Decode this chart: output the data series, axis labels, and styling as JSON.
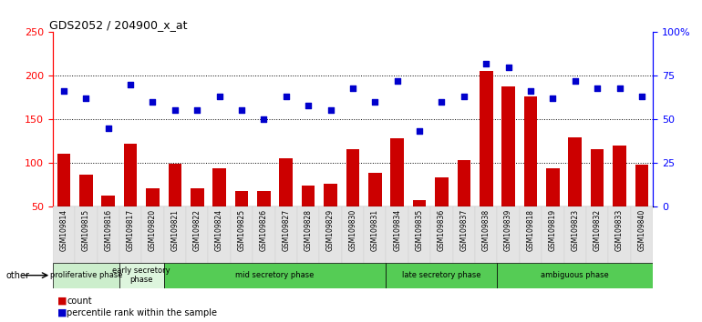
{
  "title": "GDS2052 / 204900_x_at",
  "samples": [
    "GSM109814",
    "GSM109815",
    "GSM109816",
    "GSM109817",
    "GSM109820",
    "GSM109821",
    "GSM109822",
    "GSM109824",
    "GSM109825",
    "GSM109826",
    "GSM109827",
    "GSM109828",
    "GSM109829",
    "GSM109830",
    "GSM109831",
    "GSM109834",
    "GSM109835",
    "GSM109836",
    "GSM109837",
    "GSM109838",
    "GSM109839",
    "GSM109818",
    "GSM109819",
    "GSM109823",
    "GSM109832",
    "GSM109833",
    "GSM109840"
  ],
  "counts": [
    110,
    86,
    62,
    122,
    70,
    99,
    70,
    94,
    67,
    67,
    105,
    74,
    76,
    115,
    88,
    128,
    57,
    83,
    103,
    205,
    188,
    176,
    94,
    129,
    115,
    120,
    98
  ],
  "percentiles": [
    66,
    62,
    45,
    70,
    60,
    55,
    55,
    63,
    55,
    50,
    63,
    58,
    55,
    68,
    60,
    72,
    43,
    60,
    63,
    82,
    80,
    66,
    62,
    72,
    68,
    68,
    63
  ],
  "phase_list": [
    {
      "name": "proliferative phase",
      "start": 0,
      "end": 3,
      "color": "#cceecc"
    },
    {
      "name": "early secretory\nphase",
      "start": 3,
      "end": 5,
      "color": "#ddf5dd"
    },
    {
      "name": "mid secretory phase",
      "start": 5,
      "end": 15,
      "color": "#55cc55"
    },
    {
      "name": "late secretory phase",
      "start": 15,
      "end": 20,
      "color": "#55cc55"
    },
    {
      "name": "ambiguous phase",
      "start": 20,
      "end": 27,
      "color": "#55cc55"
    }
  ],
  "ylim_left": [
    50,
    250
  ],
  "ylim_right": [
    0,
    100
  ],
  "yticks_left": [
    50,
    100,
    150,
    200,
    250
  ],
  "yticks_right": [
    0,
    25,
    50,
    75,
    100
  ],
  "grid_values": [
    100,
    150,
    200
  ],
  "bar_color": "#cc0000",
  "dot_color": "#0000cc",
  "bg_color": "#ffffff"
}
